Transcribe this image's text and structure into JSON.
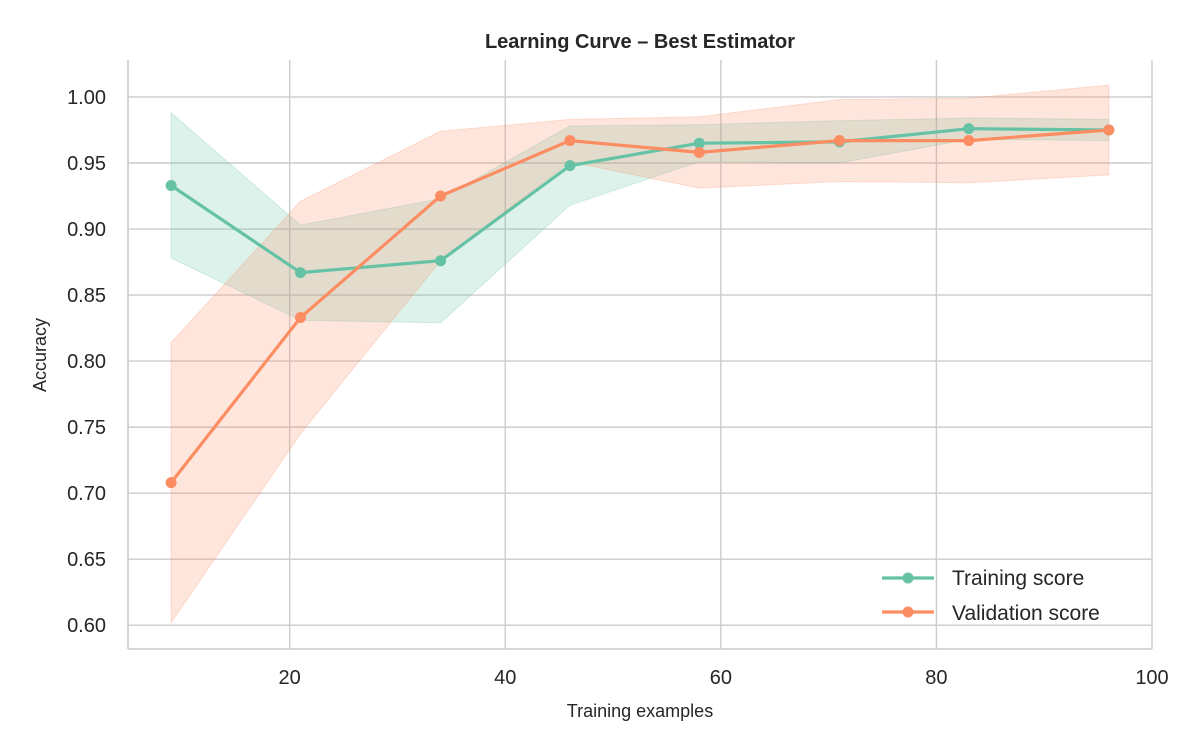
{
  "chart_data": {
    "type": "line",
    "title": "Learning Curve – Best Estimator",
    "xlabel": "Training examples",
    "ylabel": "Accuracy",
    "xlim": [
      5,
      100
    ],
    "ylim": [
      0.582,
      1.028
    ],
    "xticks": [
      20,
      40,
      60,
      80,
      100
    ],
    "yticks": [
      0.6,
      0.65,
      0.7,
      0.75,
      0.8,
      0.85,
      0.9,
      0.95,
      1.0
    ],
    "xtick_labels": [
      "20",
      "40",
      "60",
      "80",
      "100"
    ],
    "ytick_labels": [
      "0.60",
      "0.65",
      "0.70",
      "0.75",
      "0.80",
      "0.85",
      "0.90",
      "0.95",
      "1.00"
    ],
    "grid": true,
    "legend_position": "lower-right",
    "x": [
      9,
      21,
      34,
      46,
      58,
      71,
      83,
      96
    ],
    "series": [
      {
        "name": "Training score",
        "color": "#66c2a5",
        "values": [
          0.933,
          0.867,
          0.876,
          0.948,
          0.965,
          0.966,
          0.976,
          0.975
        ],
        "upper": [
          0.988,
          0.903,
          0.923,
          0.978,
          0.979,
          0.982,
          0.984,
          0.983
        ],
        "lower": [
          0.878,
          0.831,
          0.829,
          0.918,
          0.951,
          0.95,
          0.968,
          0.967
        ]
      },
      {
        "name": "Validation score",
        "color": "#fc8d62",
        "values": [
          0.708,
          0.833,
          0.925,
          0.967,
          0.958,
          0.967,
          0.967,
          0.975
        ],
        "upper": [
          0.814,
          0.921,
          0.974,
          0.983,
          0.985,
          0.998,
          0.999,
          1.009
        ],
        "lower": [
          0.602,
          0.745,
          0.876,
          0.951,
          0.931,
          0.936,
          0.935,
          0.941
        ]
      }
    ]
  }
}
